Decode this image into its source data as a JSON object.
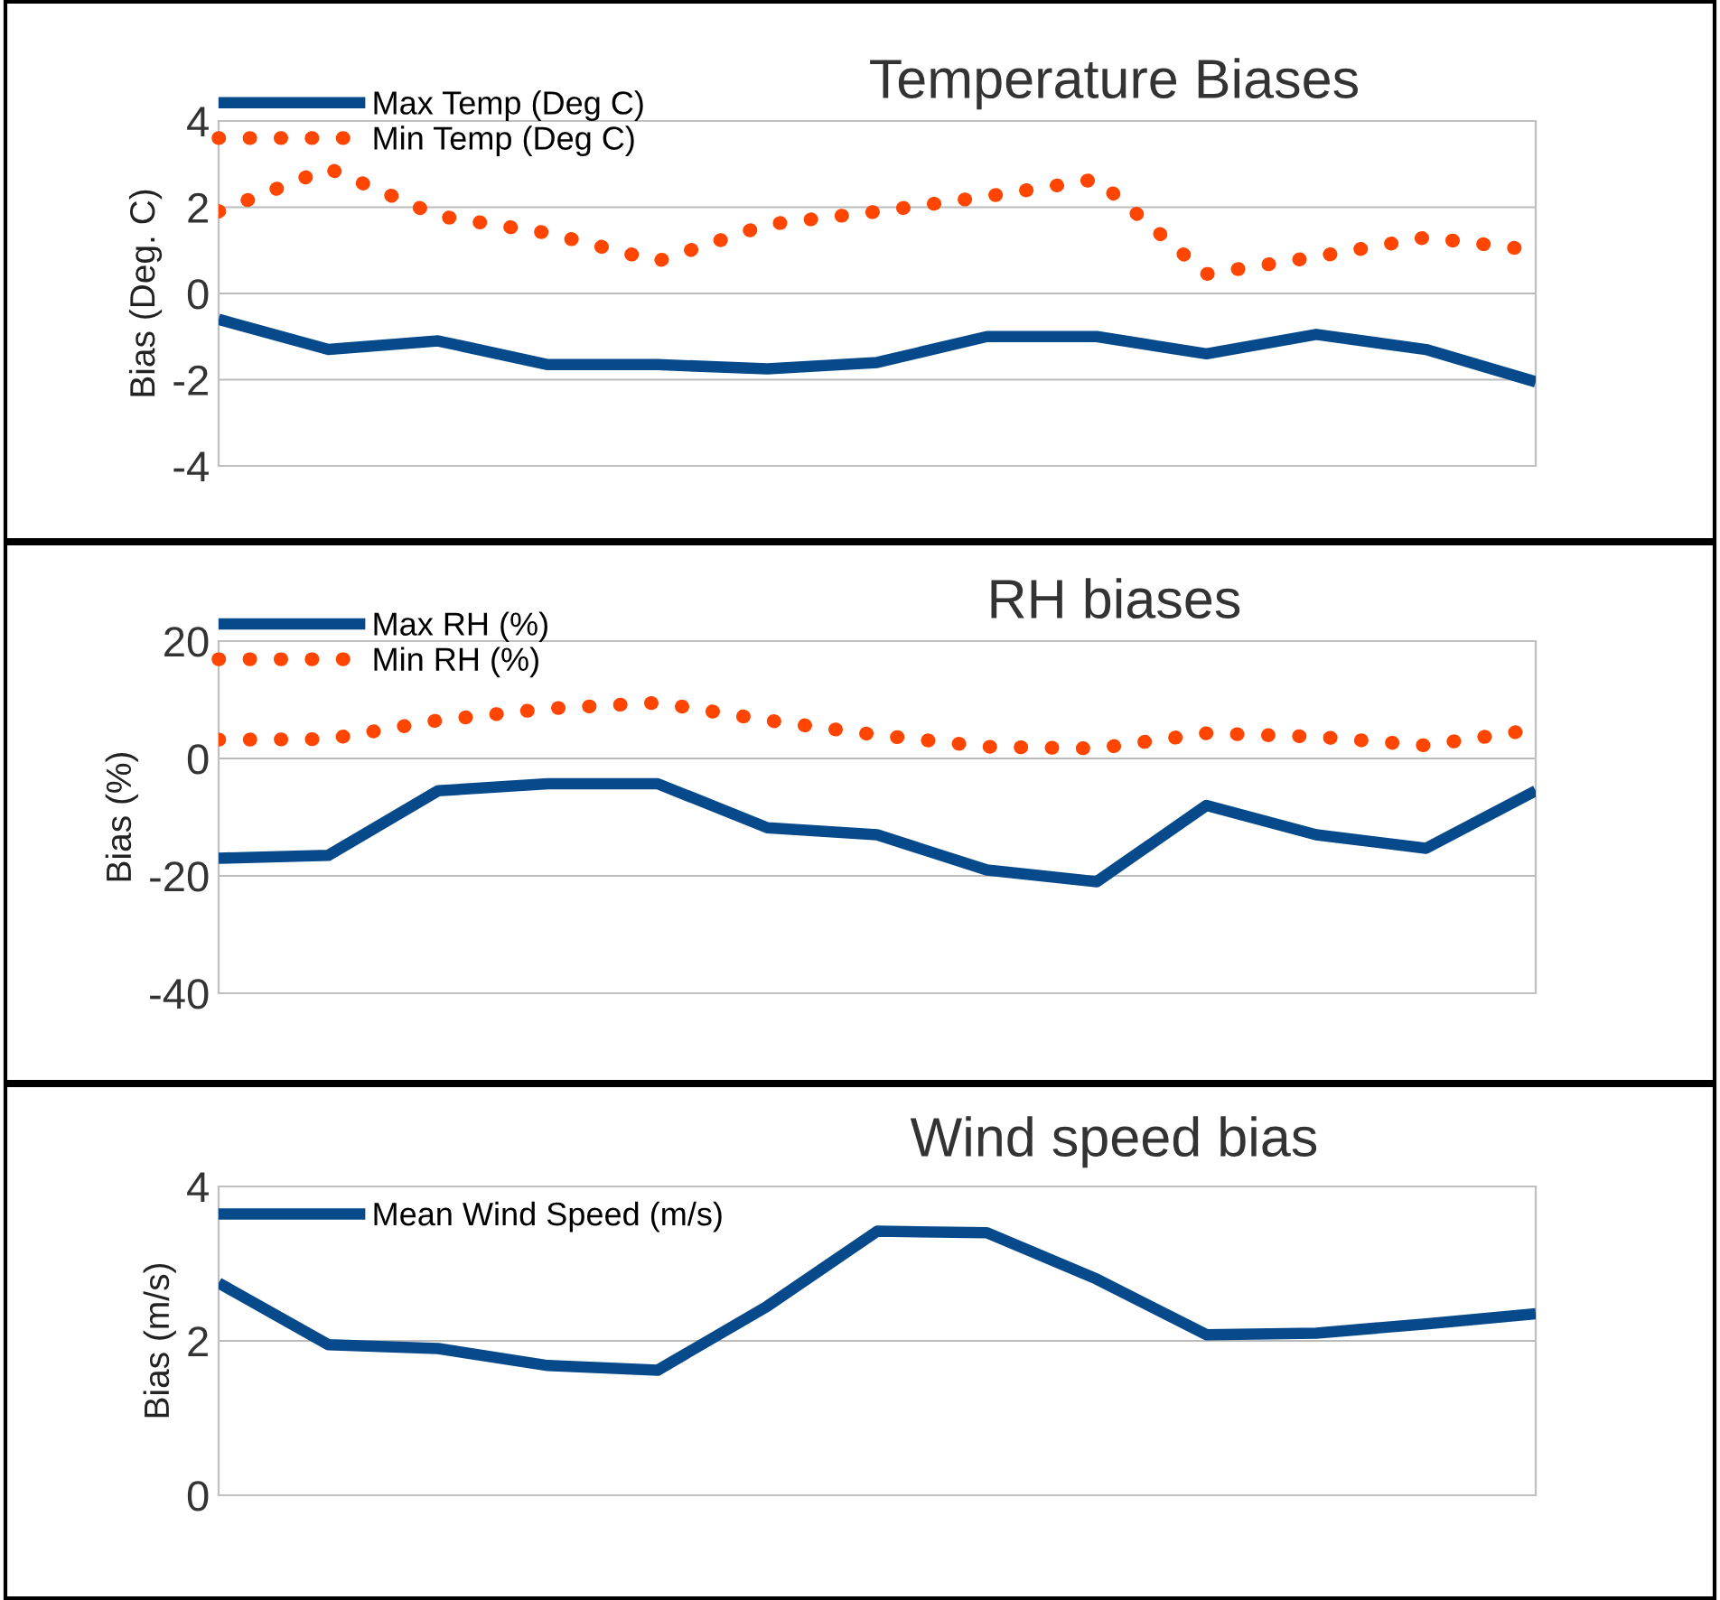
{
  "chart_data": [
    {
      "type": "line",
      "title": "Temperature Biases",
      "ylabel": "Bias (Deg. C)",
      "categories": [
        null,
        null,
        null,
        null,
        null,
        null,
        null,
        null,
        null,
        null,
        null,
        null,
        null
      ],
      "ylim": [
        -4,
        4
      ],
      "yticks": [
        -4,
        -2,
        0,
        2,
        4
      ],
      "grid": "y",
      "legend": "top left",
      "tick_labels": "y",
      "marker": "none",
      "series": [
        {
          "name": "Max Temp (Deg C)",
          "color": "#074a8c",
          "line_style": "solid",
          "values": [
            -0.6,
            -1.3,
            -1.1,
            -1.65,
            -1.65,
            -1.75,
            -1.6,
            -1.0,
            -1.0,
            -1.4,
            -0.95,
            -1.3,
            -2.05
          ]
        },
        {
          "name": "Min Temp (Deg C)",
          "color": "#ff4500",
          "line_style": "dotted",
          "values": [
            1.9,
            2.9,
            1.8,
            1.4,
            0.75,
            1.6,
            1.9,
            2.25,
            2.65,
            0.45,
            0.85,
            1.3,
            1.0
          ]
        }
      ]
    },
    {
      "type": "line",
      "title": "RH biases",
      "ylabel": "Bias (%)",
      "categories": [
        null,
        null,
        null,
        null,
        null,
        null,
        null,
        null,
        null,
        null,
        null,
        null,
        null
      ],
      "ylim": [
        -40,
        20
      ],
      "yticks": [
        -40,
        -20,
        0,
        20
      ],
      "grid": "y",
      "legend": "top left",
      "tick_labels": "y",
      "marker": "none",
      "series": [
        {
          "name": "Max RH (%)",
          "color": "#074a8c",
          "line_style": "solid",
          "values": [
            -17,
            -16.5,
            -5.5,
            -4.3,
            -4.3,
            -11.8,
            -13,
            -19,
            -21,
            -8,
            -13,
            -15.3,
            -5.5
          ]
        },
        {
          "name": "Min RH (%)",
          "color": "#ff4500",
          "line_style": "dotted",
          "values": [
            3.2,
            3.3,
            6.5,
            8.5,
            9.5,
            6.5,
            4,
            2,
            1.7,
            4.3,
            3.7,
            2.2,
            5
          ]
        }
      ]
    },
    {
      "type": "line",
      "title": "Wind speed bias",
      "ylabel": "Bias (m/s)",
      "categories": [
        null,
        null,
        null,
        null,
        null,
        null,
        null,
        null,
        null,
        null,
        null,
        null,
        null
      ],
      "ylim": [
        0,
        4
      ],
      "yticks": [
        0,
        2,
        4
      ],
      "grid": "y",
      "legend": "top left",
      "tick_labels": "y",
      "marker": "none",
      "series": [
        {
          "name": "Mean Wind Speed (m/s)",
          "color": "#074a8c",
          "line_style": "solid",
          "values": [
            2.75,
            1.95,
            1.9,
            1.68,
            1.62,
            2.45,
            3.42,
            3.4,
            2.8,
            2.08,
            2.1,
            2.22,
            2.35
          ]
        }
      ]
    }
  ]
}
